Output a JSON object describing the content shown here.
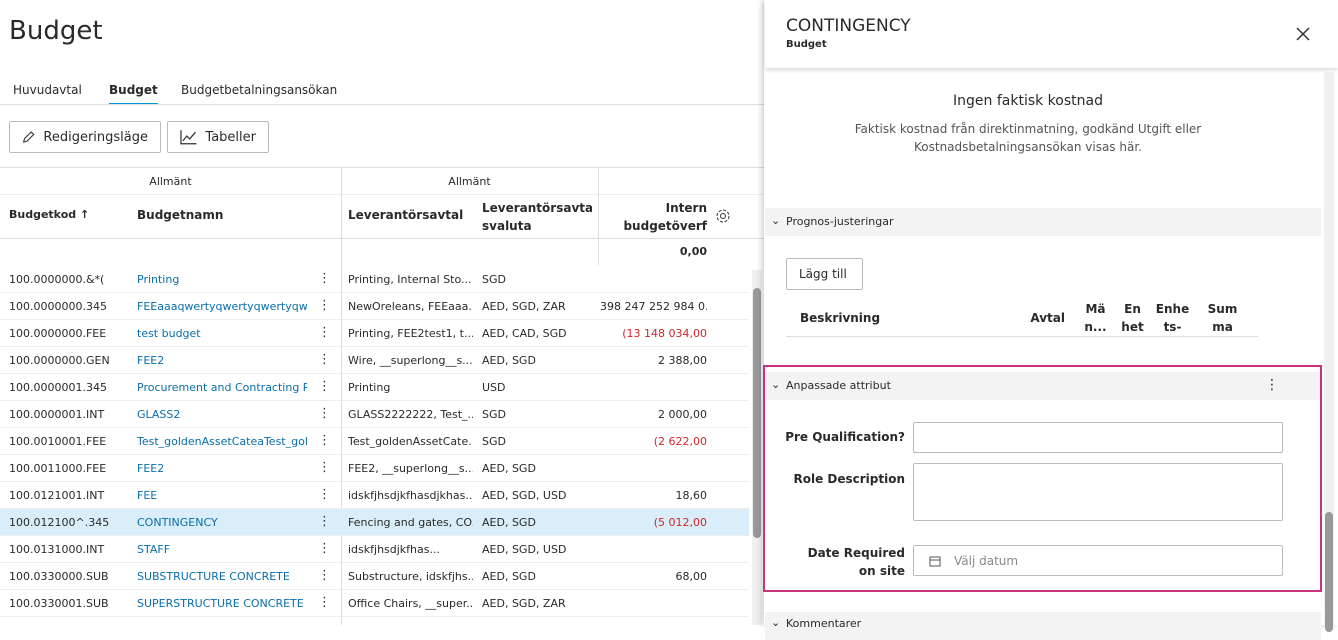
{
  "header": {
    "title": "Budget"
  },
  "tabs": [
    {
      "label": "Huvudavtal",
      "active": false
    },
    {
      "label": "Budget",
      "active": true
    },
    {
      "label": "Budgetbetalningsansökan",
      "active": false
    }
  ],
  "toolbar": [
    "Redigeringsläge",
    "Tabeller"
  ],
  "table": {
    "groups": [
      "Allmänt",
      "Allmänt"
    ],
    "columns": [
      "Budgetkod",
      "Budgetnamn",
      "Leverantörsavtal",
      "Leverantörsavtal svaluta",
      "Intern budgetöverf"
    ],
    "total": "0,00",
    "rows": [
      {
        "code": "100.0000000.&*(",
        "name": "Printing",
        "contract": "Printing, Internal Sto...",
        "currency": "SGD"
      },
      {
        "code": "100.0000000.345",
        "name": "FEEaaaqwertyqwertyqwertyqw...",
        "contract": "NewOreleans, FEEaaa...",
        "currency": "AED, SGD, ZAR",
        "amount": "398 247 252 984 0..."
      },
      {
        "code": "100.0000000.FEE",
        "name": "test budget",
        "contract": "Printing, FEE2test1, t...",
        "currency": "AED, CAD, SGD",
        "amount": "(13 148 034,00",
        "negative": true
      },
      {
        "code": "100.0000000.GEN",
        "name": "FEE2",
        "contract": "Wire, __superlong__s...",
        "currency": "AED, SGD",
        "amount": "2 388,00"
      },
      {
        "code": "100.0000001.345",
        "name": "Procurement and Contracting R...",
        "contract": "Printing",
        "currency": "USD"
      },
      {
        "code": "100.0000001.INT",
        "name": "GLASS2",
        "contract": "GLASS2222222, Test_...",
        "currency": "SGD",
        "amount": "2 000,00"
      },
      {
        "code": "100.0010001.FEE",
        "name": "Test_goldenAssetCateaTest_gol...",
        "contract": "Test_goldenAssetCate...",
        "currency": "SGD",
        "amount": "(2 622,00",
        "negative": true
      },
      {
        "code": "100.0011000.FEE",
        "name": "FEE2",
        "contract": "FEE2, __superlong__s...",
        "currency": "AED, SGD"
      },
      {
        "code": "100.0121001.INT",
        "name": "FEE",
        "contract": "idskfjhsdjkfhasdjkhas...",
        "currency": "AED, SGD, USD",
        "amount": "18,60"
      },
      {
        "code": "100.012100^.345",
        "name": "CONTINGENCY",
        "contract": "Fencing and gates, CO...",
        "currency": "AED, SGD",
        "amount": "(5 012,00",
        "negative": true,
        "selected": true
      },
      {
        "code": "100.0131000.INT",
        "name": "STAFF",
        "contract": "idskfjhsdjkfhas...",
        "currency": "AED, SGD, USD"
      },
      {
        "code": "100.0330000.SUB",
        "name": "SUBSTRUCTURE CONCRETE",
        "contract": "Substructure, idskfjhs...",
        "currency": "AED, SGD",
        "amount": "68,00"
      },
      {
        "code": "100.0330001.SUB",
        "name": "SUPERSTRUCTURE CONCRETE",
        "contract": "Office Chairs, __super...",
        "currency": "AED, SGD, ZAR"
      }
    ]
  },
  "panel": {
    "title": "CONTINGENCY",
    "subtitle": "Budget",
    "empty_title": "Ingen faktisk kostnad",
    "empty_text": "Faktisk kostnad från direktinmatning, godkänd Utgift eller Kostnadsbetalningsansökan visas här.",
    "forecast": {
      "title": "Prognos-justeringar",
      "button": "Lägg till",
      "columns": [
        "Beskrivning",
        "Avtal",
        "Mä n...",
        "En het",
        "Enhe ts-",
        "Sum ma"
      ]
    },
    "attributes": {
      "title": "Anpassade attribut",
      "fields": [
        {
          "label": "Pre Qualification?"
        },
        {
          "label": "Role Description"
        },
        {
          "label": "Date Required on site",
          "placeholder": "Välj datum"
        }
      ]
    },
    "comments": {
      "title": "Kommentarer"
    }
  }
}
